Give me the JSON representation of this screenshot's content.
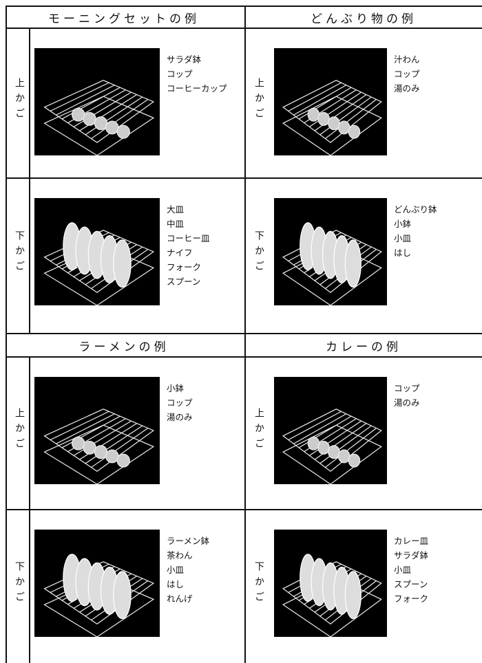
{
  "sections": [
    {
      "title": "モーニングセットの例",
      "rows": [
        {
          "label": "上かご",
          "items": [
            "サラダ鉢",
            "コップ",
            "コーヒーカップ"
          ]
        },
        {
          "label": "下かご",
          "items": [
            "大皿",
            "中皿",
            "コーヒー皿",
            "ナイフ",
            "フォーク",
            "スプーン"
          ]
        }
      ]
    },
    {
      "title": "どんぶり物の例",
      "rows": [
        {
          "label": "上かご",
          "items": [
            "汁わん",
            "コップ",
            "湯のみ"
          ]
        },
        {
          "label": "下かご",
          "items": [
            "どんぶり鉢",
            "小鉢",
            "小皿",
            "はし"
          ]
        }
      ]
    },
    {
      "title": "ラーメンの例",
      "rows": [
        {
          "label": "上かご",
          "items": [
            "小鉢",
            "コップ",
            "湯のみ"
          ]
        },
        {
          "label": "下かご",
          "items": [
            "ラーメン鉢",
            "茶わん",
            "小皿",
            "はし",
            "れんげ"
          ]
        }
      ]
    },
    {
      "title": "カレーの例",
      "rows": [
        {
          "label": "上かご",
          "items": [
            "コップ",
            "湯のみ"
          ]
        },
        {
          "label": "下かご",
          "items": [
            "カレー皿",
            "サラダ鉢",
            "小皿",
            "スプーン",
            "フォーク"
          ]
        }
      ]
    }
  ]
}
